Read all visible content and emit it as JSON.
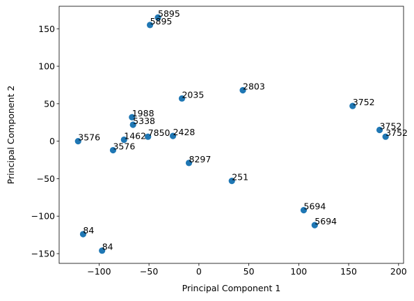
{
  "chart_data": {
    "type": "scatter",
    "xlabel": "Principal Component 1",
    "ylabel": "Principal Component 2",
    "xlim": [
      -140,
      205
    ],
    "ylim": [
      -163,
      180
    ],
    "xticks": [
      -100,
      -50,
      0,
      50,
      100,
      150,
      200
    ],
    "yticks": [
      -150,
      -100,
      -50,
      0,
      50,
      100,
      150
    ],
    "xtick_labels": [
      "−100",
      "−50",
      "0",
      "50",
      "100",
      "150",
      "200"
    ],
    "ytick_labels": [
      "−150",
      "−100",
      "−50",
      "0",
      "50",
      "100",
      "150"
    ],
    "grid": false,
    "marker_color": "#1f77b4",
    "points": [
      {
        "x": -41,
        "y": 165,
        "label": "5895"
      },
      {
        "x": -49,
        "y": 155,
        "label": "5895"
      },
      {
        "x": -17,
        "y": 57,
        "label": "2035"
      },
      {
        "x": 44,
        "y": 68,
        "label": "2803"
      },
      {
        "x": 154,
        "y": 47,
        "label": "3752"
      },
      {
        "x": -67,
        "y": 32,
        "label": "1988"
      },
      {
        "x": -66,
        "y": 22,
        "label": "5338"
      },
      {
        "x": 181,
        "y": 15,
        "label": "3752"
      },
      {
        "x": 187,
        "y": 6,
        "label": "3752"
      },
      {
        "x": -121,
        "y": 0,
        "label": "3576"
      },
      {
        "x": -75,
        "y": 2,
        "label": "1462"
      },
      {
        "x": -51,
        "y": 6,
        "label": "7850"
      },
      {
        "x": -26,
        "y": 7,
        "label": "2428"
      },
      {
        "x": -86,
        "y": -12,
        "label": "3576"
      },
      {
        "x": -10,
        "y": -29,
        "label": "8297"
      },
      {
        "x": 33,
        "y": -53,
        "label": "251"
      },
      {
        "x": 105,
        "y": -92,
        "label": "5694"
      },
      {
        "x": 116,
        "y": -112,
        "label": "5694"
      },
      {
        "x": -116,
        "y": -124,
        "label": "84"
      },
      {
        "x": -97,
        "y": -146,
        "label": "84"
      }
    ]
  }
}
